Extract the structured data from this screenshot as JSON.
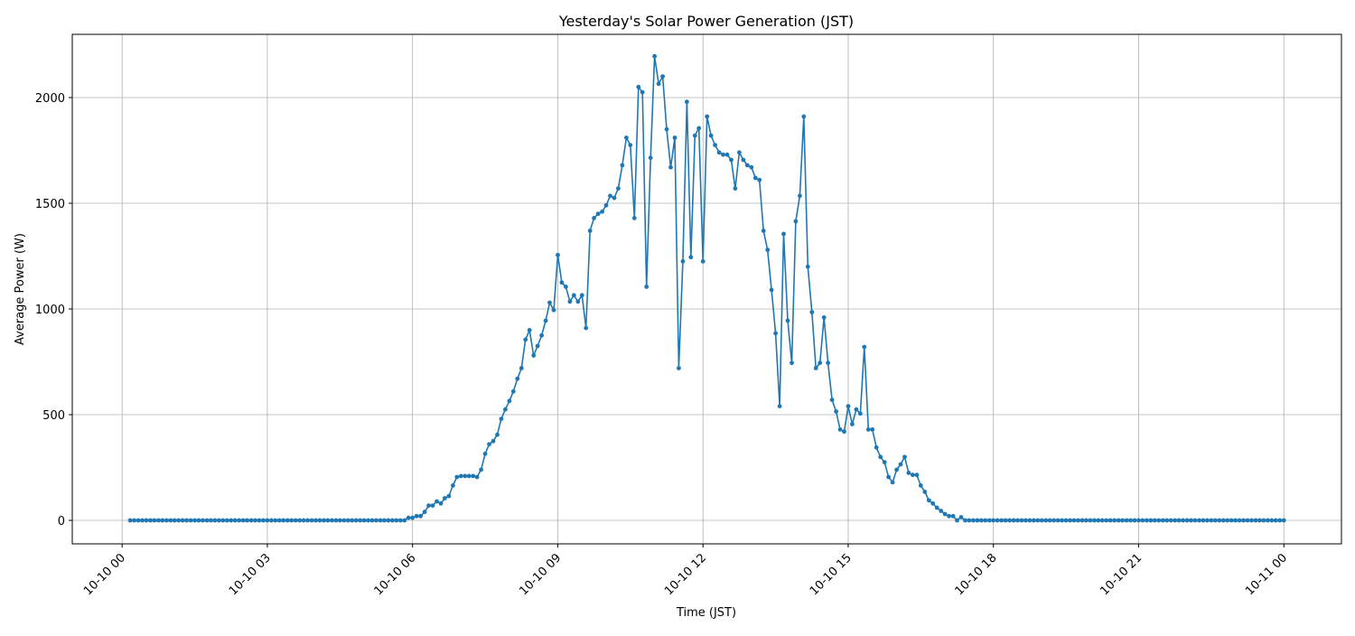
{
  "chart_data": {
    "type": "line",
    "title": "Yesterday's Solar Power Generation (JST)",
    "xlabel": "Time (JST)",
    "ylabel": "Average Power (W)",
    "x_start_minutes": 10,
    "interval_minutes": 5,
    "xlim_hours": [
      -1.03,
      25.19
    ],
    "ylim": [
      -111,
      2299
    ],
    "grid": true,
    "color": "#1f77b4",
    "marker": "circle",
    "xticks": [
      {
        "hour": 0,
        "label": "10-10 00"
      },
      {
        "hour": 3,
        "label": "10-10 03"
      },
      {
        "hour": 6,
        "label": "10-10 06"
      },
      {
        "hour": 9,
        "label": "10-10 09"
      },
      {
        "hour": 12,
        "label": "10-10 12"
      },
      {
        "hour": 15,
        "label": "10-10 15"
      },
      {
        "hour": 18,
        "label": "10-10 18"
      },
      {
        "hour": 21,
        "label": "10-10 21"
      },
      {
        "hour": 24,
        "label": "10-11 00"
      }
    ],
    "yticks": [
      {
        "value": 0,
        "label": "0"
      },
      {
        "value": 500,
        "label": "500"
      },
      {
        "value": 1000,
        "label": "1000"
      },
      {
        "value": 1500,
        "label": "1500"
      },
      {
        "value": 2000,
        "label": "2000"
      }
    ],
    "values": [
      0,
      0,
      0,
      0,
      0,
      0,
      0,
      0,
      0,
      0,
      0,
      0,
      0,
      0,
      0,
      0,
      0,
      0,
      0,
      0,
      0,
      0,
      0,
      0,
      0,
      0,
      0,
      0,
      0,
      0,
      0,
      0,
      0,
      0,
      0,
      0,
      0,
      0,
      0,
      0,
      0,
      0,
      0,
      0,
      0,
      0,
      0,
      0,
      0,
      0,
      0,
      0,
      0,
      0,
      0,
      0,
      0,
      0,
      0,
      0,
      0,
      0,
      0,
      0,
      0,
      0,
      0,
      0,
      0,
      12,
      12,
      20,
      20,
      40,
      70,
      70,
      90,
      80,
      105,
      115,
      165,
      205,
      210,
      210,
      210,
      210,
      205,
      240,
      315,
      360,
      375,
      405,
      480,
      525,
      565,
      610,
      670,
      720,
      855,
      900,
      780,
      825,
      875,
      945,
      1030,
      995,
      1255,
      1125,
      1105,
      1035,
      1065,
      1035,
      1065,
      910,
      1370,
      1430,
      1450,
      1460,
      1490,
      1535,
      1525,
      1570,
      1680,
      1810,
      1775,
      1430,
      2050,
      2025,
      1105,
      1715,
      2195,
      2065,
      2100,
      1850,
      1670,
      1810,
      720,
      1225,
      1980,
      1245,
      1820,
      1855,
      1225,
      1910,
      1820,
      1775,
      1740,
      1730,
      1730,
      1705,
      1570,
      1740,
      1705,
      1680,
      1670,
      1620,
      1610,
      1370,
      1280,
      1090,
      885,
      540,
      1355,
      945,
      745,
      1415,
      1535,
      1910,
      1200,
      985,
      720,
      745,
      960,
      745,
      570,
      515,
      430,
      420,
      540,
      455,
      525,
      505,
      820,
      430,
      430,
      345,
      300,
      275,
      205,
      180,
      240,
      265,
      300,
      225,
      215,
      215,
      165,
      135,
      95,
      80,
      60,
      45,
      30,
      20,
      20,
      0,
      15,
      0,
      0,
      0,
      0,
      0,
      0,
      0,
      0,
      0,
      0,
      0,
      0,
      0,
      0,
      0,
      0,
      0,
      0,
      0,
      0,
      0,
      0,
      0,
      0,
      0,
      0,
      0,
      0,
      0,
      0,
      0,
      0,
      0,
      0,
      0,
      0,
      0,
      0,
      0,
      0,
      0,
      0,
      0,
      0,
      0,
      0,
      0,
      0,
      0,
      0,
      0,
      0,
      0,
      0,
      0,
      0,
      0,
      0,
      0,
      0,
      0,
      0,
      0,
      0,
      0,
      0,
      0,
      0,
      0,
      0,
      0,
      0,
      0,
      0,
      0,
      0,
      0,
      0,
      0,
      0
    ]
  }
}
